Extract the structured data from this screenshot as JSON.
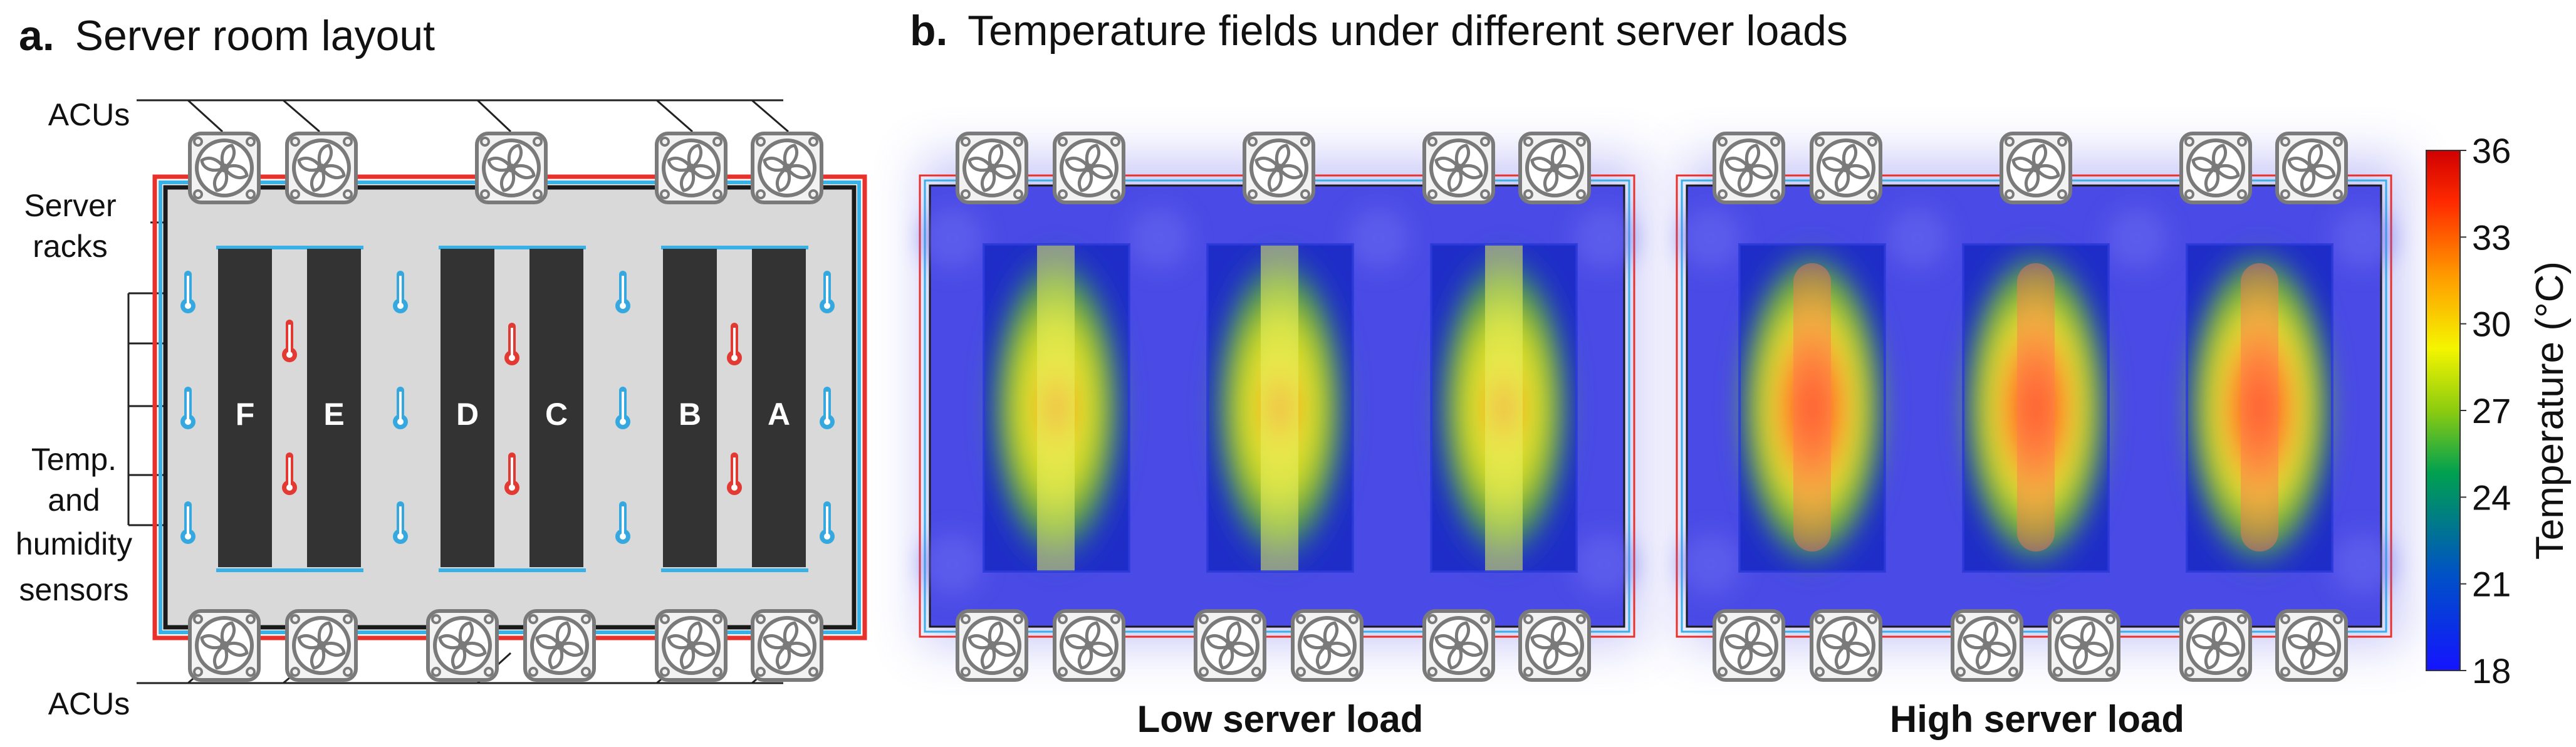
{
  "panel_a": {
    "letter": "a.",
    "title": "Server room layout",
    "labels": {
      "acus_top": "ACUs",
      "acus_bottom": "ACUs",
      "server_racks_line1": "Server",
      "server_racks_line2": "racks",
      "sensors_line1": "Temp.",
      "sensors_line2": "and",
      "sensors_line3": "humidity",
      "sensors_line4": "sensors"
    },
    "racks": [
      "F",
      "E",
      "D",
      "C",
      "B",
      "A"
    ],
    "colors": {
      "wall_red": "#e8312b",
      "wall_blue": "#39b0e6",
      "wall_dark": "#1a1a1a",
      "floor": "#d9d9d9",
      "rack": "#333333",
      "rack_label": "#ffffff",
      "cold_sensor": "#35a9df",
      "hot_sensor": "#e23a33"
    }
  },
  "panel_b": {
    "letter": "b.",
    "title": "Temperature fields under different server loads",
    "fields": [
      {
        "caption": "Low server load",
        "load": "low"
      },
      {
        "caption": "High server load",
        "load": "high"
      }
    ],
    "colorbar": {
      "label": "Temperature (°C)",
      "min": 18,
      "max": 36,
      "ticks": [
        "36",
        "33",
        "30",
        "27",
        "24",
        "21",
        "18"
      ],
      "colors": [
        "#1414ff",
        "#0050c8",
        "#00a050",
        "#20b020",
        "#f5f500",
        "#ff9a00",
        "#ff2a00",
        "#d00000"
      ]
    }
  }
}
